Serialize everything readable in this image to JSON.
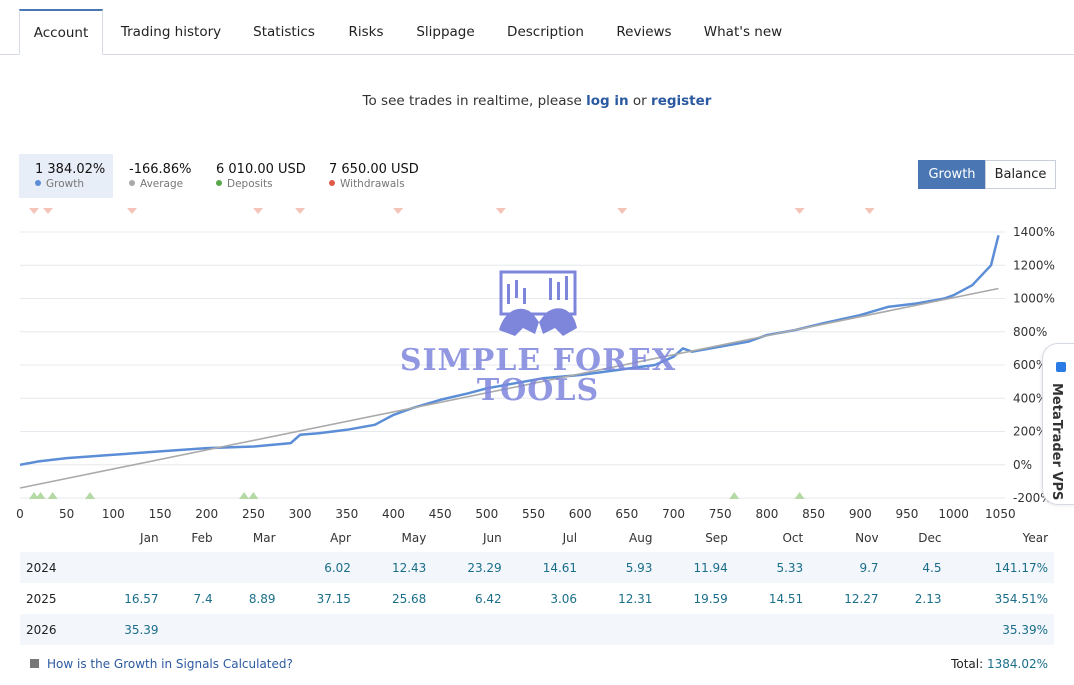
{
  "tabs": [
    "Account",
    "Trading history",
    "Statistics",
    "Risks",
    "Slippage",
    "Description",
    "Reviews",
    "What's new"
  ],
  "notice": {
    "prefix": "To see trades in realtime, please",
    "login": "log in",
    "or": "or",
    "register": "register"
  },
  "legend": [
    {
      "value": "1 384.02%",
      "label": "Growth",
      "color": "#5b8ed6"
    },
    {
      "value": "-166.86%",
      "label": "Average",
      "color": "#a8a8a8"
    },
    {
      "value": "6 010.00 USD",
      "label": "Deposits",
      "color": "#5aa64a"
    },
    {
      "value": "7 650.00 USD",
      "label": "Withdrawals",
      "color": "#e05a4a"
    }
  ],
  "toggle": {
    "growth": "Growth",
    "balance": "Balance"
  },
  "watermark": {
    "line1": "SIMPLE FOREX",
    "line2": "TOOLS"
  },
  "vps": "MetaTrader VPS",
  "chart_data": {
    "type": "line",
    "x_ticks": [
      0,
      50,
      100,
      150,
      200,
      250,
      300,
      350,
      400,
      450,
      500,
      550,
      600,
      650,
      700,
      750,
      800,
      850,
      900,
      950,
      1000,
      1050
    ],
    "y_ticks": [
      "1400%",
      "1200%",
      "1000%",
      "800%",
      "600%",
      "400%",
      "200%",
      "0%",
      "-200%"
    ],
    "xlim": [
      0,
      1055
    ],
    "ylim": [
      -200,
      1400
    ],
    "series": [
      {
        "color": "#5b8ed6",
        "x": [
          0,
          20,
          50,
          100,
          150,
          200,
          250,
          290,
          300,
          320,
          350,
          380,
          400,
          420,
          450,
          480,
          500,
          530,
          560,
          600,
          640,
          680,
          700,
          710,
          720,
          750,
          780,
          800,
          830,
          860,
          900,
          930,
          960,
          980,
          990,
          1000,
          1020,
          1030,
          1040,
          1048
        ],
        "y": [
          0,
          20,
          40,
          60,
          80,
          100,
          110,
          130,
          180,
          190,
          210,
          240,
          300,
          340,
          390,
          430,
          460,
          490,
          520,
          540,
          570,
          600,
          650,
          700,
          680,
          710,
          740,
          780,
          810,
          850,
          900,
          950,
          970,
          990,
          1000,
          1020,
          1080,
          1140,
          1200,
          1380
        ]
      },
      {
        "color": "#aaaaaa",
        "x": [
          0,
          1048
        ],
        "y": [
          -140,
          1060
        ]
      }
    ],
    "withdrawal_markers": [
      15,
      30,
      120,
      255,
      300,
      405,
      515,
      645,
      835,
      910
    ],
    "deposit_markers": [
      15,
      22,
      35,
      75,
      240,
      250,
      765,
      835
    ]
  },
  "monthly": {
    "headers": [
      "",
      "Jan",
      "Feb",
      "Mar",
      "Apr",
      "May",
      "Jun",
      "Jul",
      "Aug",
      "Sep",
      "Oct",
      "Nov",
      "Dec",
      "Year"
    ],
    "rows": [
      [
        "2024",
        "",
        "",
        "",
        "6.02",
        "12.43",
        "23.29",
        "14.61",
        "5.93",
        "11.94",
        "5.33",
        "9.7",
        "4.5",
        "141.17%"
      ],
      [
        "2025",
        "16.57",
        "7.4",
        "8.89",
        "37.15",
        "25.68",
        "6.42",
        "3.06",
        "12.31",
        "19.59",
        "14.51",
        "12.27",
        "2.13",
        "354.51%"
      ],
      [
        "2026",
        "35.39",
        "",
        "",
        "",
        "",
        "",
        "",
        "",
        "",
        "",
        "",
        "",
        "35.39%"
      ]
    ]
  },
  "footer": {
    "link": "How is the Growth in Signals Calculated?",
    "total_label": "Total:",
    "total_value": "1384.02%"
  }
}
